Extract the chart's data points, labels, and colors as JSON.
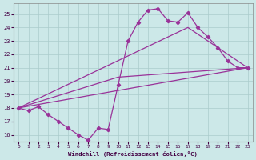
{
  "xlabel": "Windchill (Refroidissement éolien,°C)",
  "bg_color": "#cce8e8",
  "grid_color": "#aacccc",
  "line_color": "#993399",
  "xlim": [
    -0.5,
    23.5
  ],
  "ylim": [
    15.5,
    25.8
  ],
  "yticks": [
    16,
    17,
    18,
    19,
    20,
    21,
    22,
    23,
    24,
    25
  ],
  "xticks": [
    0,
    1,
    2,
    3,
    4,
    5,
    6,
    7,
    8,
    9,
    10,
    11,
    12,
    13,
    14,
    15,
    16,
    17,
    18,
    19,
    20,
    21,
    22,
    23
  ],
  "line1_x": [
    0,
    1,
    2,
    3,
    4,
    5,
    6,
    7,
    8,
    9,
    10,
    11,
    12,
    13,
    14,
    15,
    16,
    17,
    18,
    19,
    20,
    21,
    22,
    23
  ],
  "line1_y": [
    18.0,
    17.8,
    18.1,
    17.5,
    17.0,
    16.5,
    16.0,
    15.6,
    16.5,
    16.4,
    19.7,
    23.0,
    24.4,
    25.3,
    25.4,
    24.5,
    24.4,
    25.1,
    24.0,
    23.3,
    22.5,
    21.5,
    21.0,
    21.0
  ],
  "line2_x": [
    0,
    23
  ],
  "line2_y": [
    18.0,
    21.0
  ],
  "line3_x": [
    0,
    17,
    23
  ],
  "line3_y": [
    18.0,
    24.0,
    21.0
  ],
  "line4_x": [
    0,
    10,
    23
  ],
  "line4_y": [
    18.0,
    20.3,
    21.0
  ]
}
